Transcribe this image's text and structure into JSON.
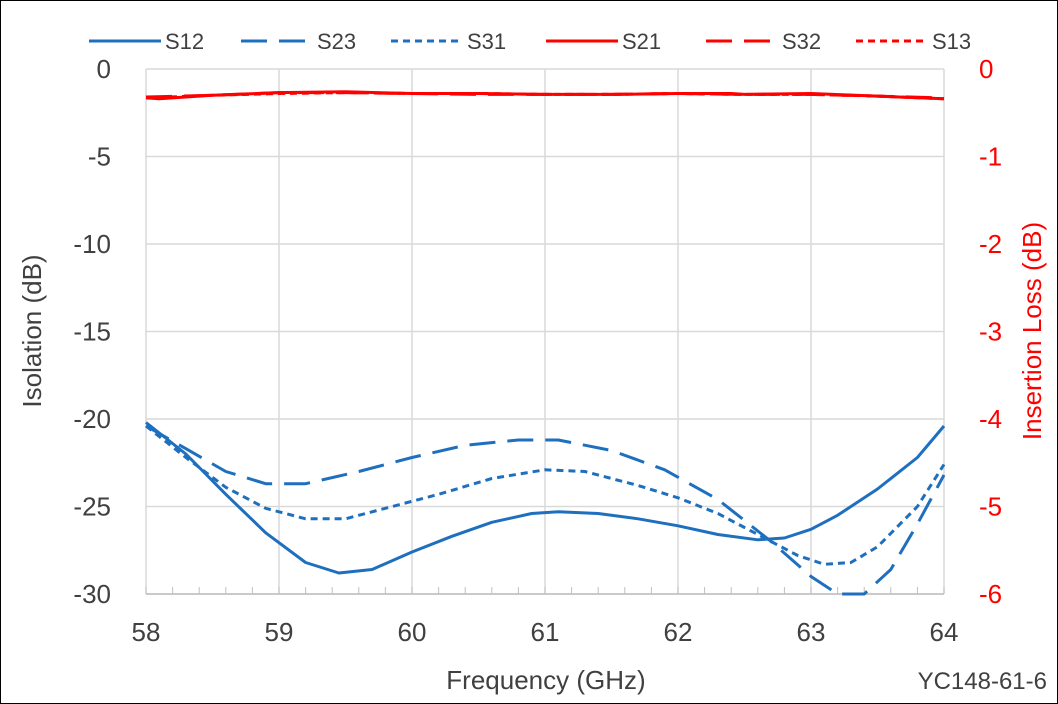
{
  "chart_data": {
    "type": "line",
    "xlabel": "Frequency (GHz)",
    "ylabel": "Isolation (dB)",
    "y2label": "Insertion Loss (dB)",
    "annotation": "YC148-61-6",
    "xlim": [
      58,
      64
    ],
    "ylim": [
      -30,
      0
    ],
    "y2lim": [
      -6,
      0
    ],
    "x_ticks": [
      58,
      59,
      60,
      61,
      62,
      63,
      64
    ],
    "y_ticks": [
      0,
      -5,
      -10,
      -15,
      -20,
      -25,
      -30
    ],
    "y2_ticks": [
      0,
      -1,
      -2,
      -3,
      -4,
      -5,
      -6
    ],
    "grid": true,
    "legend_position": "top",
    "colors": {
      "isolation": "#1f6fbf",
      "insertion": "#ff0000",
      "axis_left": "#404040",
      "axis_right": "#ff0000"
    },
    "series": [
      {
        "name": "S12",
        "axis": "left",
        "dash": "solid",
        "x": [
          58,
          58.3,
          58.6,
          58.9,
          59.2,
          59.45,
          59.7,
          60,
          60.3,
          60.6,
          60.9,
          61.1,
          61.4,
          61.7,
          62,
          62.3,
          62.6,
          62.8,
          63,
          63.2,
          63.5,
          63.8,
          64
        ],
        "y": [
          -20.2,
          -22.0,
          -24.3,
          -26.5,
          -28.2,
          -28.8,
          -28.6,
          -27.6,
          -26.7,
          -25.9,
          -25.4,
          -25.3,
          -25.4,
          -25.7,
          -26.1,
          -26.6,
          -26.9,
          -26.8,
          -26.3,
          -25.5,
          -24.0,
          -22.2,
          -20.4
        ]
      },
      {
        "name": "S23",
        "axis": "left",
        "dash": "long-dash",
        "x": [
          58,
          58.3,
          58.6,
          58.9,
          59.2,
          59.6,
          60,
          60.4,
          60.8,
          61.1,
          61.5,
          61.9,
          62.3,
          62.7,
          63,
          63.2,
          63.4,
          63.6,
          63.8,
          64
        ],
        "y": [
          -20.4,
          -21.7,
          -23.0,
          -23.7,
          -23.7,
          -23.0,
          -22.2,
          -21.5,
          -21.2,
          -21.2,
          -21.8,
          -22.9,
          -24.6,
          -27.0,
          -29.0,
          -30.0,
          -30.0,
          -28.6,
          -26.0,
          -23.2
        ]
      },
      {
        "name": "S31",
        "axis": "left",
        "dash": "short-dash",
        "x": [
          58,
          58.3,
          58.6,
          58.9,
          59.2,
          59.5,
          59.8,
          60.2,
          60.6,
          61,
          61.3,
          61.7,
          62,
          62.3,
          62.6,
          62.9,
          63.1,
          63.3,
          63.5,
          63.8,
          64
        ],
        "y": [
          -20.4,
          -22.2,
          -23.9,
          -25.1,
          -25.7,
          -25.7,
          -25.1,
          -24.3,
          -23.4,
          -22.9,
          -23.0,
          -23.8,
          -24.5,
          -25.4,
          -26.6,
          -27.8,
          -28.3,
          -28.2,
          -27.3,
          -25.0,
          -22.6
        ]
      },
      {
        "name": "S21",
        "axis": "right",
        "dash": "solid",
        "x": [
          58,
          58.1,
          58.5,
          59,
          59.5,
          60,
          60.5,
          61,
          61.5,
          62,
          62.4,
          62.5,
          63,
          63.5,
          64
        ],
        "y": [
          -0.33,
          -0.34,
          -0.3,
          -0.27,
          -0.26,
          -0.28,
          -0.28,
          -0.29,
          -0.29,
          -0.28,
          -0.28,
          -0.29,
          -0.28,
          -0.31,
          -0.34
        ]
      },
      {
        "name": "S32",
        "axis": "right",
        "dash": "long-dash",
        "x": [
          58,
          58.5,
          59,
          59.5,
          60,
          60.5,
          61,
          61.5,
          62,
          62.5,
          63,
          63.5,
          64
        ],
        "y": [
          -0.32,
          -0.3,
          -0.27,
          -0.27,
          -0.28,
          -0.29,
          -0.29,
          -0.29,
          -0.28,
          -0.29,
          -0.29,
          -0.31,
          -0.33
        ]
      },
      {
        "name": "S13",
        "axis": "right",
        "dash": "short-dash",
        "x": [
          58,
          58.5,
          59,
          59.5,
          60,
          60.5,
          61,
          61.5,
          62,
          62.5,
          63,
          63.5,
          64
        ],
        "y": [
          -0.33,
          -0.3,
          -0.28,
          -0.27,
          -0.28,
          -0.28,
          -0.29,
          -0.29,
          -0.28,
          -0.29,
          -0.29,
          -0.31,
          -0.34
        ]
      }
    ]
  }
}
